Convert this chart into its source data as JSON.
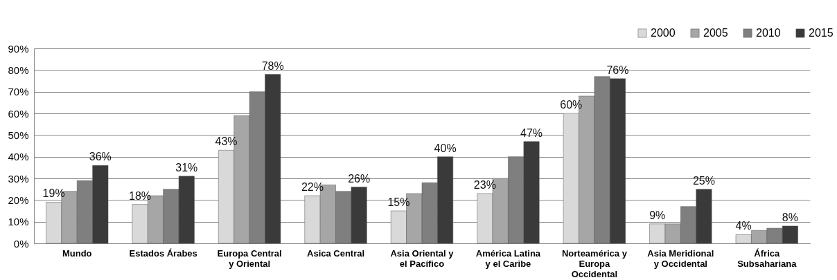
{
  "chart_data": {
    "type": "bar",
    "categories": [
      "Mundo",
      "Estados Árabes",
      "Europa Central y Oriental",
      "Asica Central",
      "Asia Oriental y el Pacífico",
      "América Latina y el Caribe",
      "Norteamérica y Europa Occidental",
      "Asia Meridional y Occidental",
      "África Subsahariana"
    ],
    "series": [
      {
        "name": "2000",
        "color": "#d9d9d9",
        "values": [
          19,
          18,
          43,
          22,
          15,
          23,
          60,
          9,
          4
        ],
        "value_labels": [
          "19%",
          "18%",
          "43%",
          "22%",
          "15%",
          "23%",
          "60%",
          "9%",
          "4%"
        ]
      },
      {
        "name": "2005",
        "color": "#a6a6a6",
        "values": [
          24,
          22,
          59,
          27,
          23,
          30,
          68,
          9,
          6
        ]
      },
      {
        "name": "2010",
        "color": "#7f7f7f",
        "values": [
          29,
          25,
          70,
          24,
          28,
          40,
          77,
          17,
          7
        ]
      },
      {
        "name": "2015",
        "color": "#3a3a3a",
        "values": [
          36,
          31,
          78,
          26,
          40,
          47,
          76,
          25,
          8
        ],
        "value_labels": [
          "36%",
          "31%",
          "78%",
          "26%",
          "40%",
          "47%",
          "76%",
          "25%",
          "8%"
        ]
      }
    ],
    "ylim": [
      0,
      90
    ],
    "yticks": [
      {
        "value": 0,
        "label": "0%"
      },
      {
        "value": 10,
        "label": "10%"
      },
      {
        "value": 20,
        "label": "20%"
      },
      {
        "value": 30,
        "label": "30%"
      },
      {
        "value": 40,
        "label": "40%"
      },
      {
        "value": 50,
        "label": "50%"
      },
      {
        "value": 60,
        "label": "60%"
      },
      {
        "value": 70,
        "label": "70%"
      },
      {
        "value": 80,
        "label": "80%"
      },
      {
        "value": 90,
        "label": "90%"
      }
    ],
    "grid": "y",
    "legend": "top right"
  }
}
